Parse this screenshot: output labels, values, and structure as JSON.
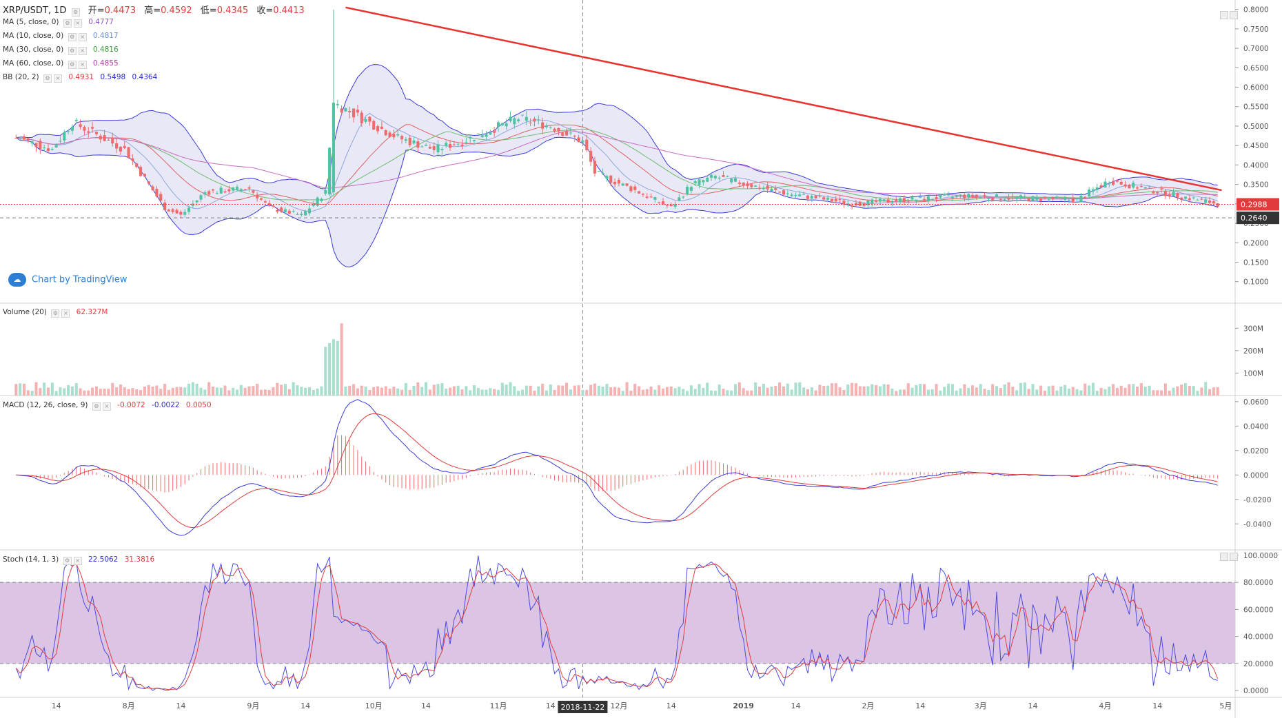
{
  "header": {
    "symbol": "XRP/USDT, 1D",
    "open_label": "开=",
    "open": "0.4473",
    "high_label": "高=",
    "high": "0.4592",
    "low_label": "低=",
    "low": "0.4345",
    "close_label": "收=",
    "close": "0.4413"
  },
  "indicators": [
    {
      "name": "MA (5, close, 0)",
      "values": [
        "0.4777"
      ],
      "colors": [
        "#8e4fd1"
      ]
    },
    {
      "name": "MA (10, close, 0)",
      "values": [
        "0.4817"
      ],
      "colors": [
        "#6b8ccf"
      ]
    },
    {
      "name": "MA (30, close, 0)",
      "values": [
        "0.4816"
      ],
      "colors": [
        "#3a9a3a"
      ]
    },
    {
      "name": "MA (60, close, 0)",
      "values": [
        "0.4855"
      ],
      "colors": [
        "#b03aa5"
      ]
    },
    {
      "name": "BB (20, 2)",
      "values": [
        "0.4931",
        "0.5498",
        "0.4364"
      ],
      "colors": [
        "#e03c3c",
        "#2a2ad0",
        "#2a2ad0"
      ]
    }
  ],
  "watermark": "Chart by TradingView",
  "volume_legend": {
    "name": "Volume (20)",
    "value": "62.327M"
  },
  "macd_legend": {
    "name": "MACD (12, 26, close, 9)",
    "values": [
      "-0.0072",
      "-0.0022",
      "0.0050"
    ]
  },
  "stoch_legend": {
    "name": "Stoch (14, 1, 3)",
    "values": [
      "22.5062",
      "31.3816"
    ]
  },
  "price_labels": {
    "current": "0.2988",
    "low_line": "0.2640"
  },
  "crosshair_date": "2018-11-22",
  "time_axis": [
    "14",
    "8月",
    "14",
    "9月",
    "14",
    "10月",
    "14",
    "11月",
    "14",
    "12月",
    "14",
    "2019",
    "14",
    "2月",
    "14",
    "3月",
    "14",
    "4月",
    "14",
    "5月"
  ],
  "colors": {
    "up": "#4fc3a1",
    "down": "#ef6a6a",
    "bb_fill": "#e8e8f6",
    "stoch_band": "#dcc4e4",
    "trend_line": "#e8342f"
  },
  "chart_data": [
    {
      "type": "candlestick",
      "title": "XRP/USDT, 1D",
      "ylim": [
        0.08,
        0.81
      ],
      "yticks": [
        "0.1000",
        "0.1500",
        "0.2000",
        "0.2500",
        "0.3000",
        "0.3500",
        "0.4000",
        "0.4500",
        "0.5000",
        "0.5500",
        "0.6000",
        "0.6500",
        "0.7000",
        "0.7500",
        "0.8000"
      ],
      "key_points": [
        [
          "2018-07-04",
          0.47
        ],
        [
          "2018-07-13",
          0.44
        ],
        [
          "2018-07-18",
          0.51
        ],
        [
          "2018-07-31",
          0.44
        ],
        [
          "2018-08-10",
          0.29
        ],
        [
          "2018-08-14",
          0.27
        ],
        [
          "2018-08-20",
          0.33
        ],
        [
          "2018-08-31",
          0.34
        ],
        [
          "2018-09-05",
          0.29
        ],
        [
          "2018-09-13",
          0.27
        ],
        [
          "2018-09-19",
          0.33
        ],
        [
          "2018-09-21",
          0.56
        ],
        [
          "2018-09-28",
          0.52
        ],
        [
          "2018-10-07",
          0.47
        ],
        [
          "2018-10-16",
          0.44
        ],
        [
          "2018-10-23",
          0.46
        ],
        [
          "2018-11-06",
          0.52
        ],
        [
          "2018-11-14",
          0.5
        ],
        [
          "2018-11-22",
          0.46
        ],
        [
          "2018-11-25",
          0.38
        ],
        [
          "2018-12-06",
          0.33
        ],
        [
          "2018-12-14",
          0.29
        ],
        [
          "2018-12-19",
          0.35
        ],
        [
          "2018-12-25",
          0.37
        ],
        [
          "2019-01-10",
          0.33
        ],
        [
          "2019-01-28",
          0.3
        ],
        [
          "2019-02-10",
          0.31
        ],
        [
          "2019-02-24",
          0.32
        ],
        [
          "2019-03-25",
          0.31
        ],
        [
          "2019-04-02",
          0.36
        ],
        [
          "2019-04-15",
          0.33
        ],
        [
          "2019-04-29",
          0.3
        ]
      ],
      "current_price": 0.2988,
      "horizontal_line": 0.264,
      "trend_line": [
        [
          "2018-09-24",
          0.805
        ],
        [
          "2019-04-30",
          0.335
        ]
      ]
    },
    {
      "type": "bar",
      "name": "Volume (20)",
      "ylim": [
        0,
        350
      ],
      "yticks": [
        "100M",
        "200M",
        "300M"
      ],
      "unit": "M"
    },
    {
      "type": "line",
      "name": "MACD (12, 26, close, 9)",
      "ylim": [
        -0.05,
        0.065
      ],
      "yticks": [
        "-0.0400",
        "-0.0200",
        "0.0000",
        "0.0200",
        "0.0400",
        "0.0600"
      ]
    },
    {
      "type": "line",
      "name": "Stoch (14, 1, 3)",
      "ylim": [
        -2,
        102
      ],
      "yticks": [
        "0.0000",
        "20.0000",
        "40.0000",
        "60.0000",
        "80.0000",
        "100.0000"
      ],
      "band": [
        20,
        80
      ]
    }
  ]
}
